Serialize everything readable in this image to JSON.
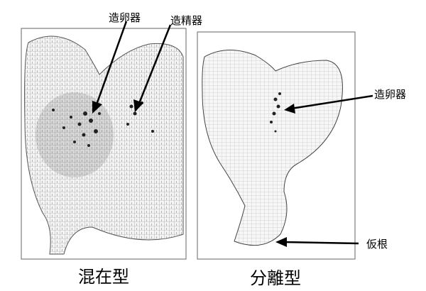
{
  "left_panel": {
    "caption": "混在型",
    "labels": {
      "archegonium": "造卵器",
      "antheridium": "造精器"
    }
  },
  "right_panel": {
    "caption": "分離型",
    "labels": {
      "archegonium": "造卵器",
      "rhizoid": "仮根"
    }
  }
}
